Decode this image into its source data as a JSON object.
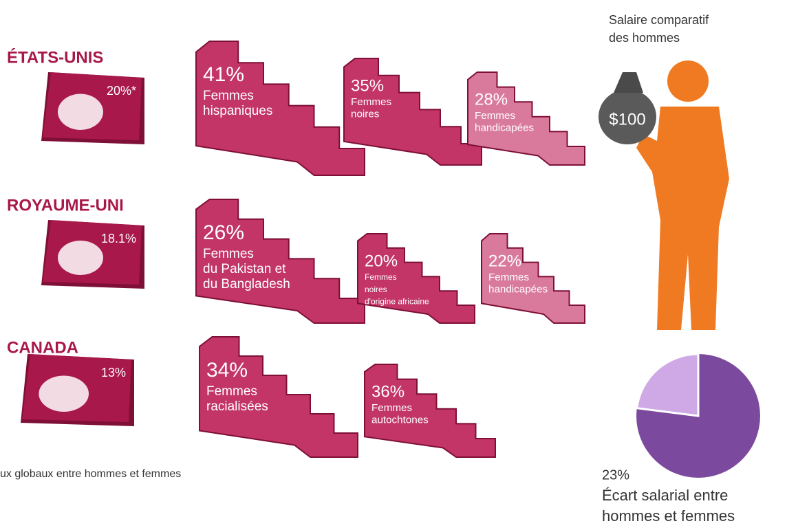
{
  "countries": [
    {
      "name": "ÉTATS-UNIS",
      "gap": "20%*",
      "groups": [
        {
          "percent": "41%",
          "lines": [
            "Femmes",
            "hispaniques"
          ]
        },
        {
          "percent": "35%",
          "lines": [
            "Femmes",
            "noires"
          ]
        },
        {
          "percent": "28%",
          "lines": [
            "Femmes",
            "handicapées"
          ]
        }
      ]
    },
    {
      "name": "ROYAUME-UNI",
      "gap": "18.1%",
      "groups": [
        {
          "percent": "26%",
          "lines": [
            "Femmes",
            "du Pakistan et",
            "du Bangladesh"
          ]
        },
        {
          "percent": "20%",
          "lines": [
            "Femmes",
            "noires",
            "d'origine africaine"
          ]
        },
        {
          "percent": "22%",
          "lines": [
            "Femmes",
            "handicapées"
          ]
        }
      ]
    },
    {
      "name": "CANADA",
      "gap": "13%",
      "groups": [
        {
          "percent": "34%",
          "lines": [
            "Femmes",
            "racialisées"
          ]
        },
        {
          "percent": "36%",
          "lines": [
            "Femmes",
            "autochtones"
          ]
        }
      ]
    }
  ],
  "footer": "ux globaux entre hommes et femmes",
  "men": {
    "lines": [
      "Salaire comparatif",
      "des hommes"
    ],
    "amount": "$100"
  },
  "pie": {
    "value": 23,
    "label": "23%",
    "lines": [
      "Écart salarial entre",
      "hommes et femmes"
    ]
  }
}
